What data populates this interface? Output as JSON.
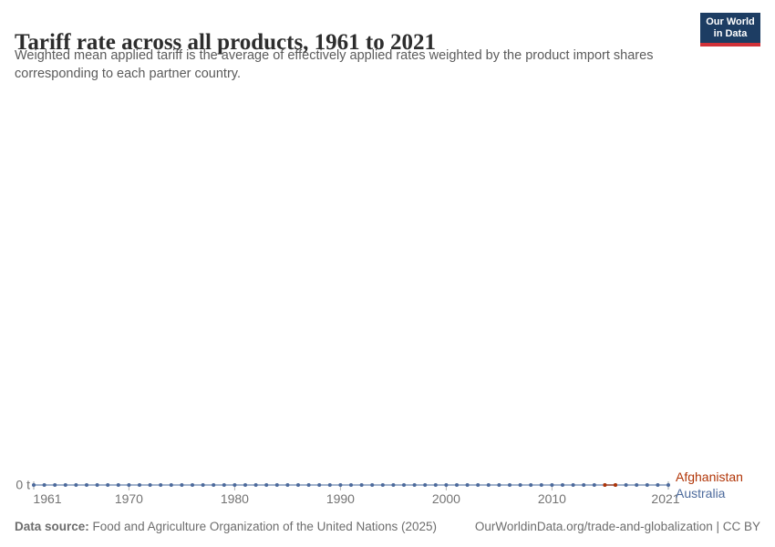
{
  "header": {
    "title": "Tariff rate across all products, 1961 to 2021",
    "subtitle_line1": "Weighted mean applied tariff is the average of effectively applied rates weighted by the product import shares",
    "subtitle_line2": "corresponding to each partner country.",
    "logo_line1": "Our World",
    "logo_line2": "in Data",
    "logo_bg_color": "#1d3d63",
    "logo_stripe_color": "#d13239"
  },
  "chart_data": {
    "type": "line",
    "title": "Tariff rate across all products, 1961 to 2021",
    "xlabel": "",
    "ylabel": "",
    "y_zero_label": "0 t",
    "x_range": [
      1961,
      2021
    ],
    "ylim": [
      0,
      1
    ],
    "grid": false,
    "legend_position": "right",
    "x_ticks": [
      1961,
      1970,
      1980,
      1990,
      2000,
      2010,
      2021
    ],
    "legend_order": [
      "Afghanistan",
      "Australia"
    ],
    "series": [
      {
        "name": "Australia",
        "color": "#4C6A9C",
        "x": [
          1961,
          1962,
          1963,
          1964,
          1965,
          1966,
          1967,
          1968,
          1969,
          1970,
          1971,
          1972,
          1973,
          1974,
          1975,
          1976,
          1977,
          1978,
          1979,
          1980,
          1981,
          1982,
          1983,
          1984,
          1985,
          1986,
          1987,
          1988,
          1989,
          1990,
          1991,
          1992,
          1993,
          1994,
          1995,
          1996,
          1997,
          1998,
          1999,
          2000,
          2001,
          2002,
          2003,
          2004,
          2005,
          2006,
          2007,
          2008,
          2009,
          2010,
          2011,
          2012,
          2013,
          2014,
          2015,
          2016,
          2017,
          2018,
          2019,
          2020,
          2021
        ],
        "values": [
          0,
          0,
          0,
          0,
          0,
          0,
          0,
          0,
          0,
          0,
          0,
          0,
          0,
          0,
          0,
          0,
          0,
          0,
          0,
          0,
          0,
          0,
          0,
          0,
          0,
          0,
          0,
          0,
          0,
          0,
          0,
          0,
          0,
          0,
          0,
          0,
          0,
          0,
          0,
          0,
          0,
          0,
          0,
          0,
          0,
          0,
          0,
          0,
          0,
          0,
          0,
          0,
          0,
          0,
          0,
          0,
          0,
          0,
          0,
          0,
          0
        ]
      },
      {
        "name": "Afghanistan",
        "color": "#B13507",
        "x": [
          2015,
          2016
        ],
        "values": [
          0,
          0
        ]
      }
    ]
  },
  "footer": {
    "data_source_label": "Data source:",
    "data_source_text": " Food and Agriculture Organization of the United Nations (2025)",
    "attribution_url": "OurWorldinData.org/trade-and-globalization",
    "attribution_suffix": " | CC BY"
  }
}
